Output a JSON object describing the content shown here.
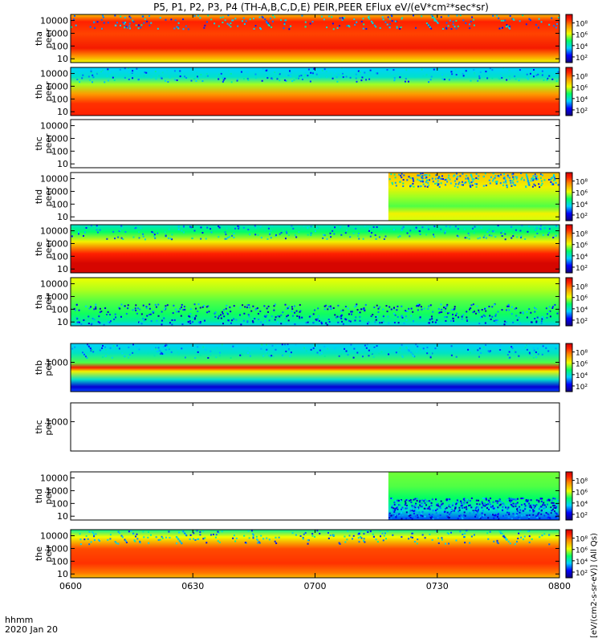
{
  "title": "P5, P1, P2, P3, P4 (TH-A,B,C,D,E) PEIR,PEER EFlux eV/(eV*cm²*sec*sr)",
  "xaxis": {
    "corner_label_1": "hhmm",
    "corner_label_2": "2020 Jan 20",
    "ticks": [
      {
        "hour": 6.0,
        "label": "0600"
      },
      {
        "hour": 6.5,
        "label": "0630"
      },
      {
        "hour": 7.0,
        "label": "0700"
      },
      {
        "hour": 7.5,
        "label": "0730"
      },
      {
        "hour": 8.0,
        "label": "0800"
      }
    ]
  },
  "right_axis_text": "[eV/(cm2-s-sr-eV)] (All Qs)",
  "colorbar_ticks": [
    "10⁸",
    "10⁶",
    "10⁴",
    "10²"
  ],
  "colorbar_exponents": [
    8,
    6,
    4,
    2
  ],
  "chart_data": {
    "type": "heatmap",
    "time_range_hours": [
      6.0,
      8.0
    ],
    "energy_scale": "log",
    "panels": [
      {
        "id": "tha-peer",
        "label1": "tha",
        "label2": "peer",
        "yticks": [
          10,
          100,
          1000,
          10000
        ],
        "ytick_labels": [
          "10",
          "100",
          "1000",
          "10000"
        ],
        "ylim": [
          5,
          30000
        ],
        "has_data": true,
        "data_start_hour": 6.0,
        "colorbar": true,
        "style": "dense"
      },
      {
        "id": "thb-peer",
        "label1": "thb",
        "label2": "peer",
        "yticks": [
          10,
          100,
          1000,
          10000
        ],
        "ytick_labels": [
          "10",
          "100",
          "1000",
          "10000"
        ],
        "ylim": [
          5,
          30000
        ],
        "has_data": true,
        "data_start_hour": 6.0,
        "colorbar": true,
        "style": "dense"
      },
      {
        "id": "thc-peer",
        "label1": "thc",
        "label2": "peer",
        "yticks": [
          10,
          100,
          1000,
          10000
        ],
        "ytick_labels": [
          "10",
          "100",
          "1000",
          "10000"
        ],
        "ylim": [
          5,
          30000
        ],
        "has_data": false,
        "colorbar": false,
        "style": "empty"
      },
      {
        "id": "thd-peer",
        "label1": "thd",
        "label2": "peer",
        "yticks": [
          10,
          100,
          1000,
          10000
        ],
        "ytick_labels": [
          "10",
          "100",
          "1000",
          "10000"
        ],
        "ylim": [
          5,
          30000
        ],
        "has_data": true,
        "data_start_hour": 7.3,
        "colorbar": true,
        "style": "dense"
      },
      {
        "id": "the-peer",
        "label1": "the",
        "label2": "peer",
        "yticks": [
          10,
          100,
          1000,
          10000
        ],
        "ytick_labels": [
          "10",
          "100",
          "1000",
          "10000"
        ],
        "ylim": [
          5,
          30000
        ],
        "has_data": true,
        "data_start_hour": 6.0,
        "colorbar": true,
        "style": "dense"
      },
      {
        "id": "tha-peir",
        "label1": "tha",
        "label2": "peir",
        "yticks": [
          10,
          100,
          1000,
          10000
        ],
        "ytick_labels": [
          "10",
          "100",
          "1000",
          "10000"
        ],
        "ylim": [
          5,
          30000
        ],
        "has_data": true,
        "data_start_hour": 6.0,
        "colorbar": true,
        "style": "sparse"
      },
      {
        "id": "thb-peir",
        "label1": "thb",
        "label2": "peir",
        "yticks": [
          1000
        ],
        "ytick_labels": [
          "1000"
        ],
        "ylim": [
          5,
          30000
        ],
        "has_data": true,
        "data_start_hour": 6.0,
        "colorbar": true,
        "style": "banded"
      },
      {
        "id": "thc-peir",
        "label1": "thc",
        "label2": "peir",
        "yticks": [
          1000
        ],
        "ytick_labels": [
          "1000"
        ],
        "ylim": [
          5,
          30000
        ],
        "has_data": false,
        "colorbar": false,
        "style": "empty"
      },
      {
        "id": "thd-peir",
        "label1": "thd",
        "label2": "peir",
        "yticks": [
          10,
          100,
          1000,
          10000
        ],
        "ytick_labels": [
          "10",
          "100",
          "1000",
          "10000"
        ],
        "ylim": [
          5,
          30000
        ],
        "has_data": true,
        "data_start_hour": 7.3,
        "colorbar": true,
        "style": "sparse"
      },
      {
        "id": "the-peir",
        "label1": "the",
        "label2": "peir",
        "yticks": [
          10,
          100,
          1000,
          10000
        ],
        "ytick_labels": [
          "10",
          "100",
          "1000",
          "10000"
        ],
        "ylim": [
          5,
          30000
        ],
        "has_data": true,
        "data_start_hour": 6.0,
        "colorbar": true,
        "style": "dense"
      }
    ]
  }
}
